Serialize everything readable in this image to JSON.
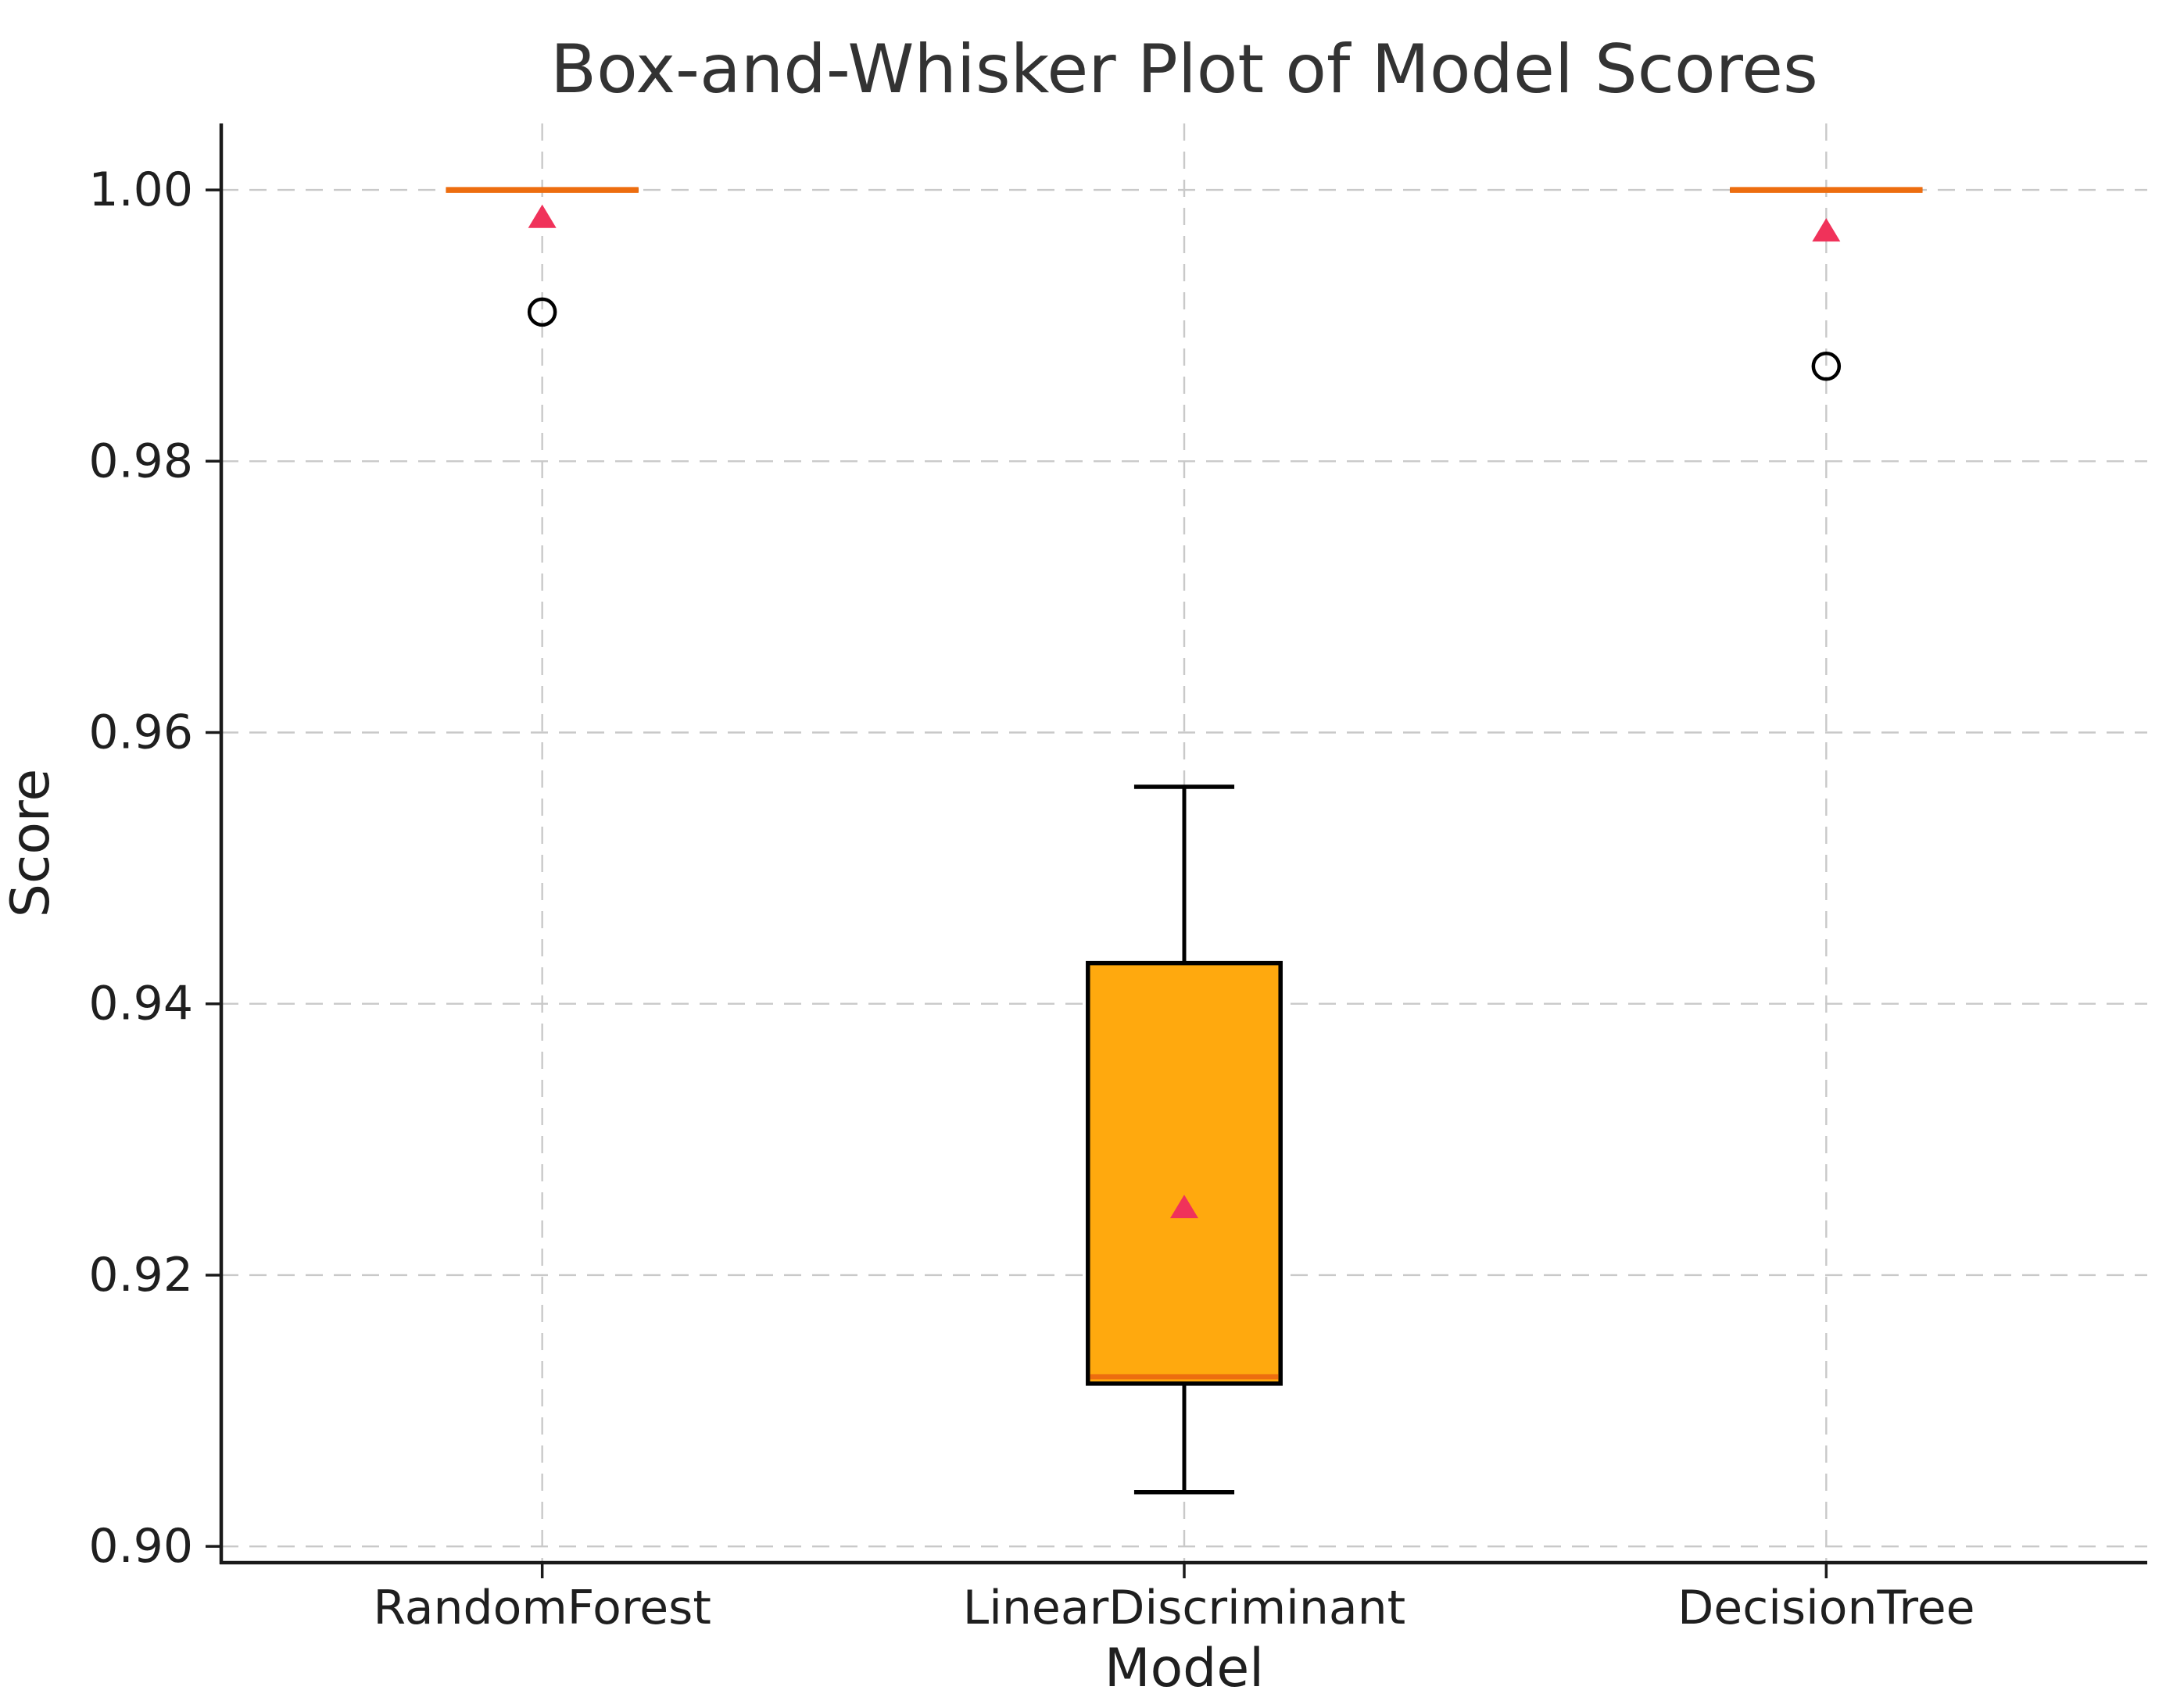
{
  "chart_data": {
    "type": "box",
    "title": "Box-and-Whisker Plot of Model Scores",
    "xlabel": "Model",
    "ylabel": "Score",
    "categories": [
      "RandomForest",
      "LinearDiscriminant",
      "DecisionTree"
    ],
    "boxes": [
      {
        "model": "RandomForest",
        "whisker_low": 1.0,
        "q1": 1.0,
        "median": 1.0,
        "q3": 1.0,
        "whisker_high": 1.0,
        "mean": 0.998,
        "outliers": [
          0.991
        ]
      },
      {
        "model": "LinearDiscriminant",
        "whisker_low": 0.904,
        "q1": 0.912,
        "median": 0.9125,
        "q3": 0.943,
        "whisker_high": 0.956,
        "mean": 0.925,
        "outliers": []
      },
      {
        "model": "DecisionTree",
        "whisker_low": 1.0,
        "q1": 1.0,
        "median": 1.0,
        "q3": 1.0,
        "whisker_high": 1.0,
        "mean": 0.997,
        "outliers": [
          0.987
        ]
      }
    ],
    "ylim": [
      0.8988,
      1.0049
    ],
    "yticks": [
      0.9,
      0.92,
      0.94,
      0.96,
      0.98,
      1.0
    ],
    "ytick_labels": [
      "0.90",
      "0.92",
      "0.94",
      "0.96",
      "0.98",
      "1.00"
    ],
    "grid": {
      "style": "dashed",
      "horizontal": true,
      "vertical": true
    },
    "legend_position": "none",
    "colors": {
      "box_fill": "#FFA90E",
      "box_edge": "#000000",
      "median_line": "#ED6D0F",
      "mean_marker": "#F0325A",
      "outlier_edge": "#000000",
      "gridline": "#c9c9c9",
      "spine": "#1a1a1a",
      "text": "#1f1f1f",
      "title_text": "#333333",
      "background": "#ffffff"
    }
  }
}
